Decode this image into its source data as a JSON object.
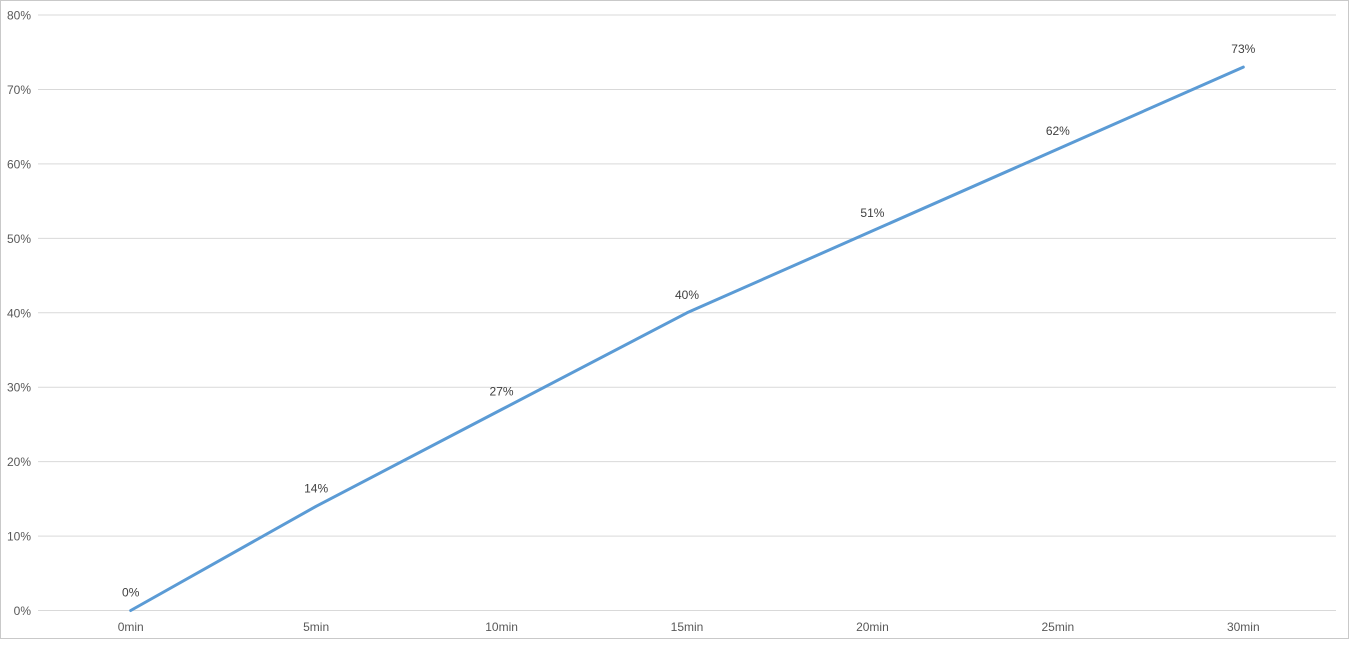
{
  "chart_data": {
    "type": "line",
    "title": "",
    "xlabel": "",
    "ylabel": "",
    "categories": [
      "0min",
      "5min",
      "10min",
      "15min",
      "20min",
      "25min",
      "30min"
    ],
    "series": [
      {
        "name": "",
        "values": [
          0,
          14,
          27,
          40,
          51,
          62,
          73
        ],
        "data_labels": [
          "0%",
          "14%",
          "27%",
          "40%",
          "51%",
          "62%",
          "73%"
        ],
        "color": "#5B9BD5"
      }
    ],
    "y_axis": {
      "min": 0,
      "max": 80,
      "tick_step": 10,
      "tick_labels": [
        "0%",
        "10%",
        "20%",
        "30%",
        "40%",
        "50%",
        "60%",
        "70%",
        "80%"
      ]
    },
    "x_axis": {
      "tick_labels": [
        "0min",
        "5min",
        "10min",
        "15min",
        "20min",
        "25min",
        "30min"
      ]
    },
    "grid": {
      "horizontal": true,
      "vertical": false
    },
    "legend": "none",
    "colors": {
      "line": "#5B9BD5",
      "gridline": "#D9D9D9",
      "axis_text": "#595959",
      "data_label_text": "#404040",
      "frame_border": "#C9C9C9",
      "background": "#FFFFFF"
    }
  }
}
